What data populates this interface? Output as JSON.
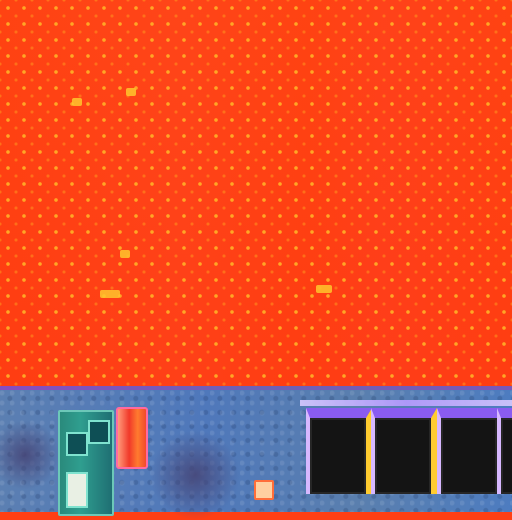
{
  "scene": {
    "regions": [
      {
        "name": "orange-red-surface",
        "color": "#ff3f12",
        "pattern_color": "#ffb828"
      },
      {
        "name": "blue-structure",
        "color": "#4f7bb8"
      }
    ],
    "accent_colors": {
      "purple": "#8a5cf0",
      "yellow": "#ffcc2f",
      "teal": "#2f9e8f",
      "red": "#f13a2a"
    }
  }
}
